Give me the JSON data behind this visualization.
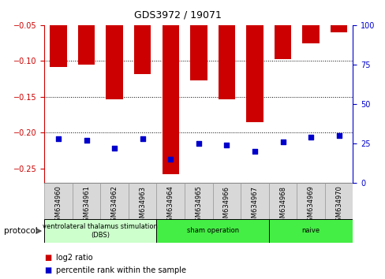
{
  "title": "GDS3972 / 19071",
  "samples": [
    "GSM634960",
    "GSM634961",
    "GSM634962",
    "GSM634963",
    "GSM634964",
    "GSM634965",
    "GSM634966",
    "GSM634967",
    "GSM634968",
    "GSM634969",
    "GSM634970"
  ],
  "log2_ratio": [
    -0.108,
    -0.105,
    -0.153,
    -0.118,
    -0.258,
    -0.127,
    -0.153,
    -0.185,
    -0.098,
    -0.075,
    -0.06
  ],
  "percentile_rank": [
    28,
    27,
    22,
    28,
    15,
    25,
    24,
    20,
    26,
    29,
    30
  ],
  "ylim_left": [
    -0.27,
    -0.05
  ],
  "ylim_right": [
    0,
    100
  ],
  "yticks_left": [
    -0.25,
    -0.2,
    -0.15,
    -0.1,
    -0.05
  ],
  "yticks_right": [
    0,
    25,
    50,
    75,
    100
  ],
  "bar_color": "#cc0000",
  "dot_color": "#0000cc",
  "protocol_groups": [
    {
      "label": "ventrolateral thalamus stimulation\n(DBS)",
      "start": 0,
      "end": 3
    },
    {
      "label": "sham operation",
      "start": 4,
      "end": 7
    },
    {
      "label": "naive",
      "start": 8,
      "end": 10
    }
  ],
  "protocol_colors": [
    "#ccffcc",
    "#44ee44",
    "#44ee44"
  ],
  "legend_items": [
    {
      "label": "log2 ratio",
      "color": "#cc0000"
    },
    {
      "label": "percentile rank within the sample",
      "color": "#0000cc"
    }
  ],
  "bg_color": "#ffffff",
  "tick_color_left": "#cc0000",
  "tick_color_right": "#0000cc"
}
